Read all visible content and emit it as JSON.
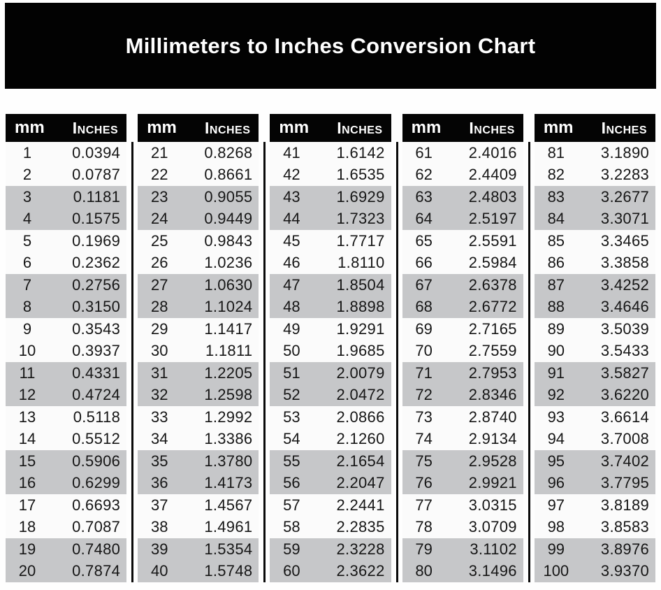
{
  "title": "Millimeters to Inches Conversion Chart",
  "table_headers": {
    "mm": "mm",
    "inches": "Inches"
  },
  "colors": {
    "banner_bg": "#020202",
    "header_bg": "#040404",
    "header_text": "#ffffff",
    "row_shaded": "#c6c7c9",
    "row_plain": "#fbfbfb",
    "text": "#161616"
  },
  "chart_data": {
    "type": "table",
    "title": "Millimeters to Inches Conversion Chart",
    "col_headers": [
      "mm",
      "Inches"
    ],
    "columns": [
      {
        "rows": [
          [
            "1",
            "0.0394"
          ],
          [
            "2",
            "0.0787"
          ],
          [
            "3",
            "0.1181"
          ],
          [
            "4",
            "0.1575"
          ],
          [
            "5",
            "0.1969"
          ],
          [
            "6",
            "0.2362"
          ],
          [
            "7",
            "0.2756"
          ],
          [
            "8",
            "0.3150"
          ],
          [
            "9",
            "0.3543"
          ],
          [
            "10",
            "0.3937"
          ],
          [
            "11",
            "0.4331"
          ],
          [
            "12",
            "0.4724"
          ],
          [
            "13",
            "0.5118"
          ],
          [
            "14",
            "0.5512"
          ],
          [
            "15",
            "0.5906"
          ],
          [
            "16",
            "0.6299"
          ],
          [
            "17",
            "0.6693"
          ],
          [
            "18",
            "0.7087"
          ],
          [
            "19",
            "0.7480"
          ],
          [
            "20",
            "0.7874"
          ]
        ]
      },
      {
        "rows": [
          [
            "21",
            "0.8268"
          ],
          [
            "22",
            "0.8661"
          ],
          [
            "23",
            "0.9055"
          ],
          [
            "24",
            "0.9449"
          ],
          [
            "25",
            "0.9843"
          ],
          [
            "26",
            "1.0236"
          ],
          [
            "27",
            "1.0630"
          ],
          [
            "28",
            "1.1024"
          ],
          [
            "29",
            "1.1417"
          ],
          [
            "30",
            "1.1811"
          ],
          [
            "31",
            "1.2205"
          ],
          [
            "32",
            "1.2598"
          ],
          [
            "33",
            "1.2992"
          ],
          [
            "34",
            "1.3386"
          ],
          [
            "35",
            "1.3780"
          ],
          [
            "36",
            "1.4173"
          ],
          [
            "37",
            "1.4567"
          ],
          [
            "38",
            "1.4961"
          ],
          [
            "39",
            "1.5354"
          ],
          [
            "40",
            "1.5748"
          ]
        ]
      },
      {
        "rows": [
          [
            "41",
            "1.6142"
          ],
          [
            "42",
            "1.6535"
          ],
          [
            "43",
            "1.6929"
          ],
          [
            "44",
            "1.7323"
          ],
          [
            "45",
            "1.7717"
          ],
          [
            "46",
            "1.8110"
          ],
          [
            "47",
            "1.8504"
          ],
          [
            "48",
            "1.8898"
          ],
          [
            "49",
            "1.9291"
          ],
          [
            "50",
            "1.9685"
          ],
          [
            "51",
            "2.0079"
          ],
          [
            "52",
            "2.0472"
          ],
          [
            "53",
            "2.0866"
          ],
          [
            "54",
            "2.1260"
          ],
          [
            "55",
            "2.1654"
          ],
          [
            "56",
            "2.2047"
          ],
          [
            "57",
            "2.2441"
          ],
          [
            "58",
            "2.2835"
          ],
          [
            "59",
            "2.3228"
          ],
          [
            "60",
            "2.3622"
          ]
        ]
      },
      {
        "rows": [
          [
            "61",
            "2.4016"
          ],
          [
            "62",
            "2.4409"
          ],
          [
            "63",
            "2.4803"
          ],
          [
            "64",
            "2.5197"
          ],
          [
            "65",
            "2.5591"
          ],
          [
            "66",
            "2.5984"
          ],
          [
            "67",
            "2.6378"
          ],
          [
            "68",
            "2.6772"
          ],
          [
            "69",
            "2.7165"
          ],
          [
            "70",
            "2.7559"
          ],
          [
            "71",
            "2.7953"
          ],
          [
            "72",
            "2.8346"
          ],
          [
            "73",
            "2.8740"
          ],
          [
            "74",
            "2.9134"
          ],
          [
            "75",
            "2.9528"
          ],
          [
            "76",
            "2.9921"
          ],
          [
            "77",
            "3.0315"
          ],
          [
            "78",
            "3.0709"
          ],
          [
            "79",
            "3.1102"
          ],
          [
            "80",
            "3.1496"
          ]
        ]
      },
      {
        "rows": [
          [
            "81",
            "3.1890"
          ],
          [
            "82",
            "3.2283"
          ],
          [
            "83",
            "3.2677"
          ],
          [
            "84",
            "3.3071"
          ],
          [
            "85",
            "3.3465"
          ],
          [
            "86",
            "3.3858"
          ],
          [
            "87",
            "3.4252"
          ],
          [
            "88",
            "3.4646"
          ],
          [
            "89",
            "3.5039"
          ],
          [
            "90",
            "3.5433"
          ],
          [
            "91",
            "3.5827"
          ],
          [
            "92",
            "3.6220"
          ],
          [
            "93",
            "3.6614"
          ],
          [
            "94",
            "3.7008"
          ],
          [
            "95",
            "3.7402"
          ],
          [
            "96",
            "3.7795"
          ],
          [
            "97",
            "3.8189"
          ],
          [
            "98",
            "3.8583"
          ],
          [
            "99",
            "3.8976"
          ],
          [
            "100",
            "3.9370"
          ]
        ]
      }
    ]
  }
}
